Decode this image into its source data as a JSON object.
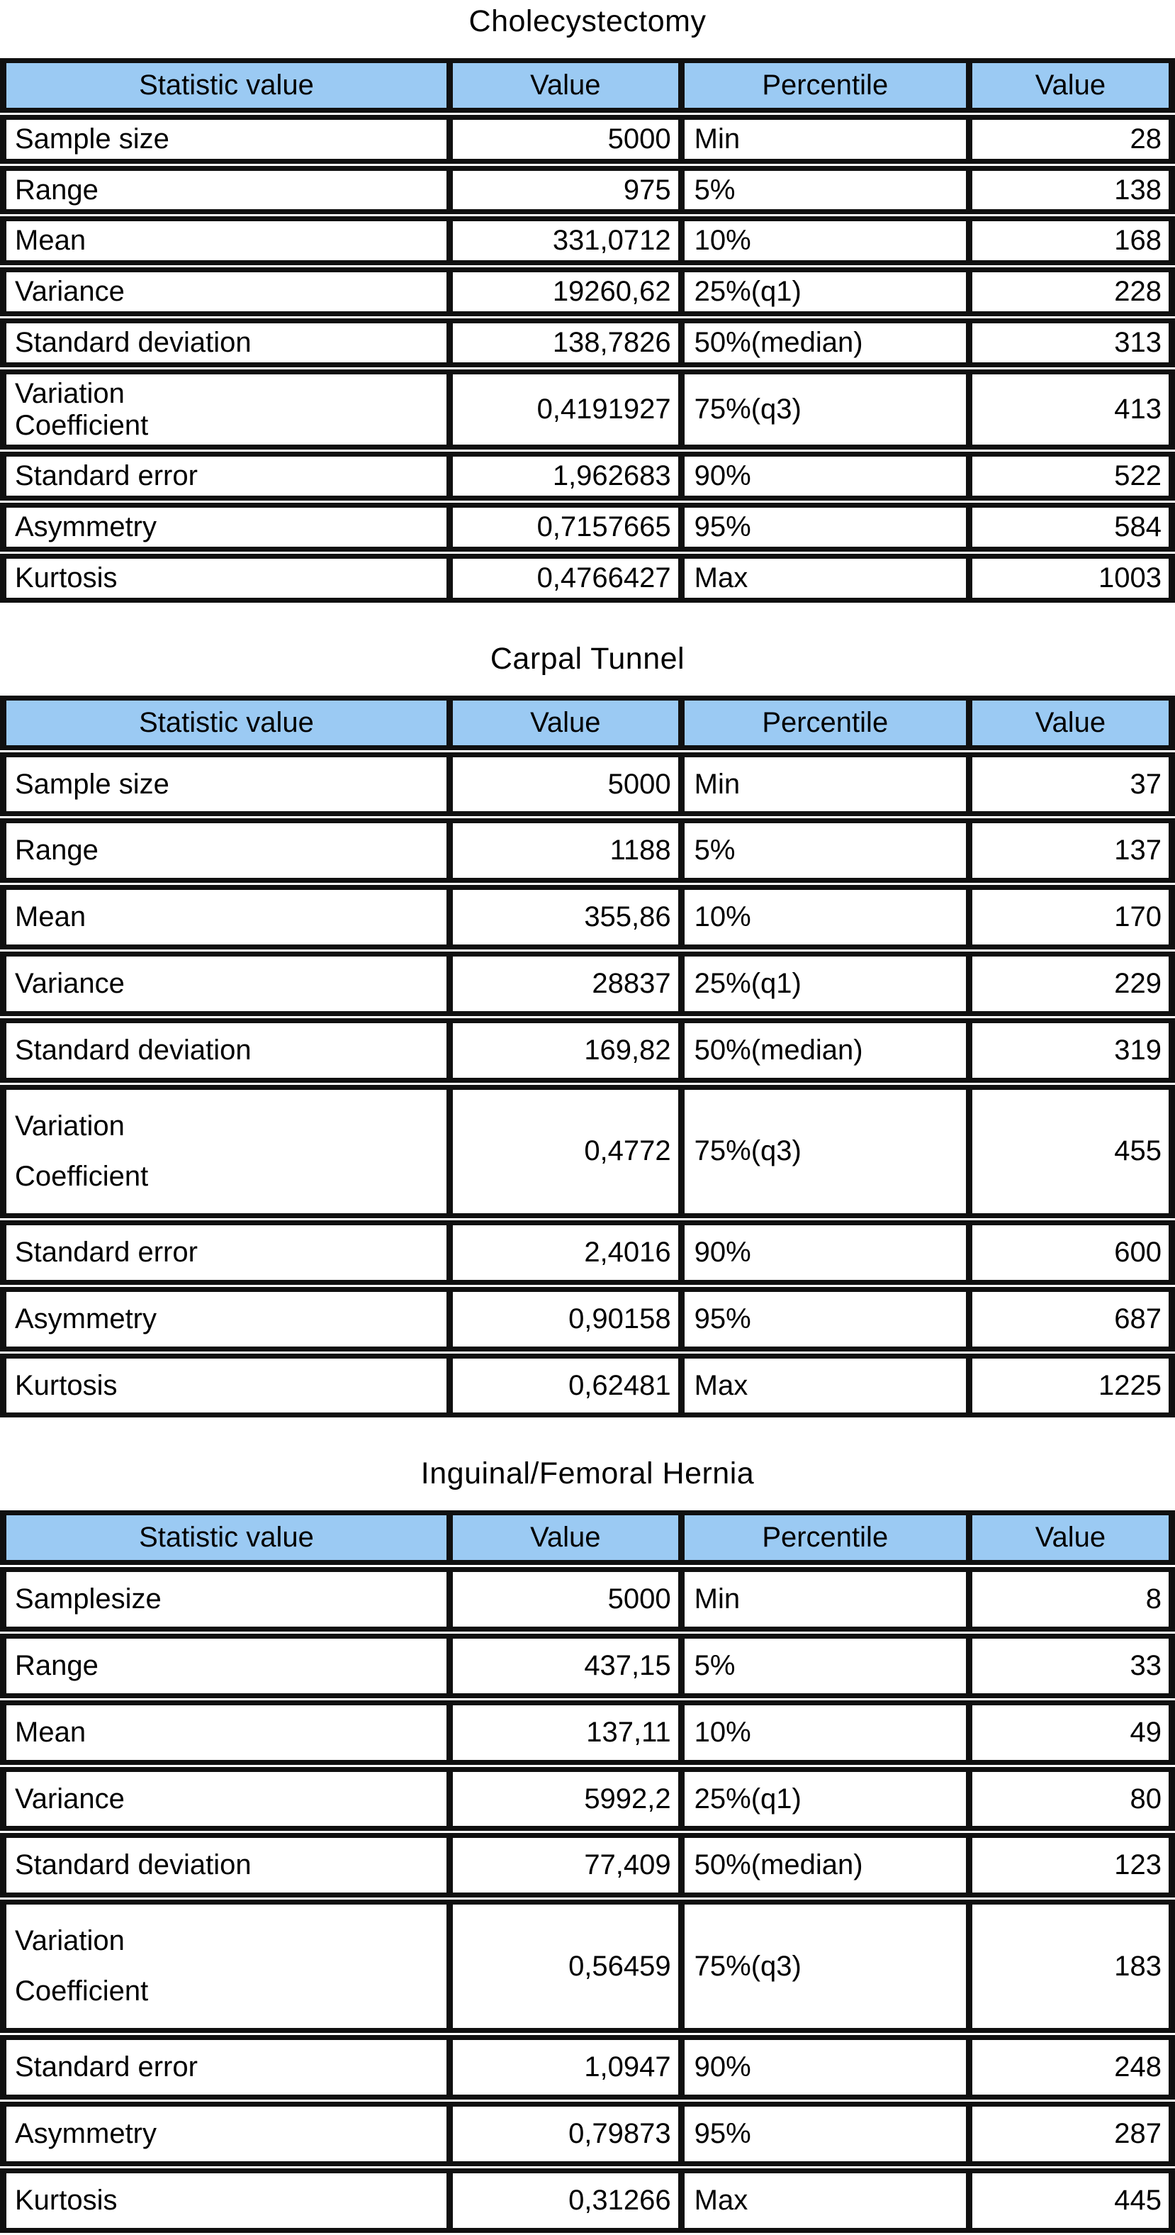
{
  "colors": {
    "header_bg": "#9BCAF3",
    "border": "#101010",
    "text": "#000000",
    "page_bg": "#ffffff"
  },
  "columns": {
    "stat": "Statistic value",
    "value": "Value",
    "percentile": "Percentile",
    "value2": "Value"
  },
  "tables": [
    {
      "title": "Cholecystectomy",
      "density": "compact",
      "rows": [
        {
          "stat": "Sample size",
          "value": "5000",
          "pct": "Min",
          "pvalue": "28"
        },
        {
          "stat": "Range",
          "value": "975",
          "pct": "5%",
          "pvalue": "138"
        },
        {
          "stat": "Mean",
          "value": "331,0712",
          "pct": "10%",
          "pvalue": "168"
        },
        {
          "stat": "Variance",
          "value": "19260,62",
          "pct": "25%(q1)",
          "pvalue": "228"
        },
        {
          "stat": "Standard deviation",
          "value": "138,7826",
          "pct": "50%(median)",
          "pvalue": "313"
        },
        {
          "stat": "Variation\nCoefficient",
          "value": "0,4191927",
          "pct": "75%(q3)",
          "pvalue": "413"
        },
        {
          "stat": "Standard error",
          "value": "1,962683",
          "pct": "90%",
          "pvalue": "522"
        },
        {
          "stat": "Asymmetry",
          "value": "0,7157665",
          "pct": "95%",
          "pvalue": "584"
        },
        {
          "stat": "Kurtosis",
          "value": "0,4766427",
          "pct": "Max",
          "pvalue": "1003"
        }
      ]
    },
    {
      "title": "Carpal Tunnel",
      "density": "roomy",
      "rows": [
        {
          "stat": "Sample size",
          "value": "5000",
          "pct": "Min",
          "pvalue": "37"
        },
        {
          "stat": "Range",
          "value": "1188",
          "pct": "5%",
          "pvalue": "137"
        },
        {
          "stat": "Mean",
          "value": "355,86",
          "pct": "10%",
          "pvalue": "170"
        },
        {
          "stat": "Variance",
          "value": "28837",
          "pct": "25%(q1)",
          "pvalue": "229"
        },
        {
          "stat": "Standard deviation",
          "value": "169,82",
          "pct": "50%(median)",
          "pvalue": "319"
        },
        {
          "stat": "Variation\nCoefficient",
          "value": "0,4772",
          "pct": "75%(q3)",
          "pvalue": "455"
        },
        {
          "stat": "Standard error",
          "value": "2,4016",
          "pct": "90%",
          "pvalue": "600"
        },
        {
          "stat": "Asymmetry",
          "value": "0,90158",
          "pct": "95%",
          "pvalue": "687"
        },
        {
          "stat": "Kurtosis",
          "value": "0,62481",
          "pct": "Max",
          "pvalue": "1225"
        }
      ]
    },
    {
      "title": "Inguinal/Femoral Hernia",
      "density": "roomy",
      "rows": [
        {
          "stat": "Samplesize",
          "value": "5000",
          "pct": "Min",
          "pvalue": "8"
        },
        {
          "stat": "Range",
          "value": "437,15",
          "pct": "5%",
          "pvalue": "33"
        },
        {
          "stat": "Mean",
          "value": "137,11",
          "pct": "10%",
          "pvalue": "49"
        },
        {
          "stat": "Variance",
          "value": "5992,2",
          "pct": "25%(q1)",
          "pvalue": "80"
        },
        {
          "stat": "Standard deviation",
          "value": "77,409",
          "pct": "50%(median)",
          "pvalue": "123"
        },
        {
          "stat": "Variation\nCoefficient",
          "value": "0,56459",
          "pct": "75%(q3)",
          "pvalue": "183"
        },
        {
          "stat": "Standard error",
          "value": "1,0947",
          "pct": "90%",
          "pvalue": "248"
        },
        {
          "stat": "Asymmetry",
          "value": "0,79873",
          "pct": "95%",
          "pvalue": "287"
        },
        {
          "stat": "Kurtosis",
          "value": "0,31266",
          "pct": "Max",
          "pvalue": "445"
        }
      ]
    }
  ]
}
